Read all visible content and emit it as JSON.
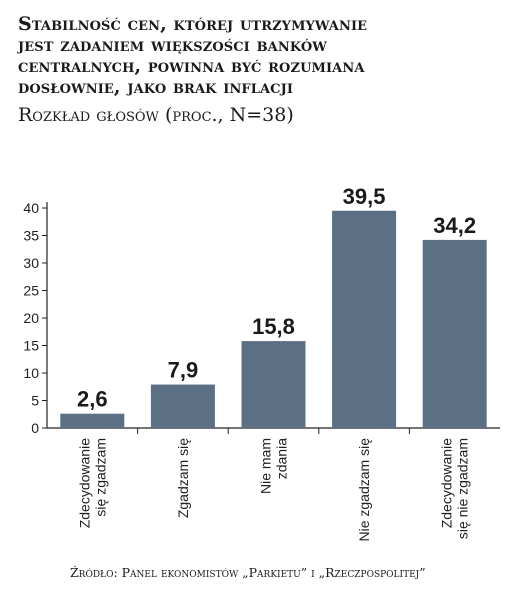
{
  "header": {
    "title_lines": [
      "Stabilność cen, której utrzymywanie",
      "jest zadaniem większości banków",
      "centralnych, powinna być rozumiana",
      "dosłownie, jako brak inflacji"
    ],
    "subtitle": "Rozkład głosów (proc., N=38)"
  },
  "footer": {
    "source": "Źródło: Panel ekonomistów „Parkietu” i „Rzeczpospolitej”"
  },
  "chart_data": {
    "type": "bar",
    "categories": [
      [
        "Zdecydowanie",
        "się zgadzam"
      ],
      [
        "Zgadzam się"
      ],
      [
        "Nie mam",
        "zdania"
      ],
      [
        "Nie zgadzam się"
      ],
      [
        "Zdecydowanie",
        "się nie zgadzam"
      ]
    ],
    "values": [
      2.6,
      7.9,
      15.8,
      39.5,
      34.2
    ],
    "value_labels": [
      "2,6",
      "7,9",
      "15,8",
      "39,5",
      "34,2"
    ],
    "yticks": [
      0,
      5,
      10,
      15,
      20,
      25,
      30,
      35,
      40
    ],
    "ylim": [
      0,
      40
    ],
    "bar_color": "#5b7085",
    "grid": false
  }
}
